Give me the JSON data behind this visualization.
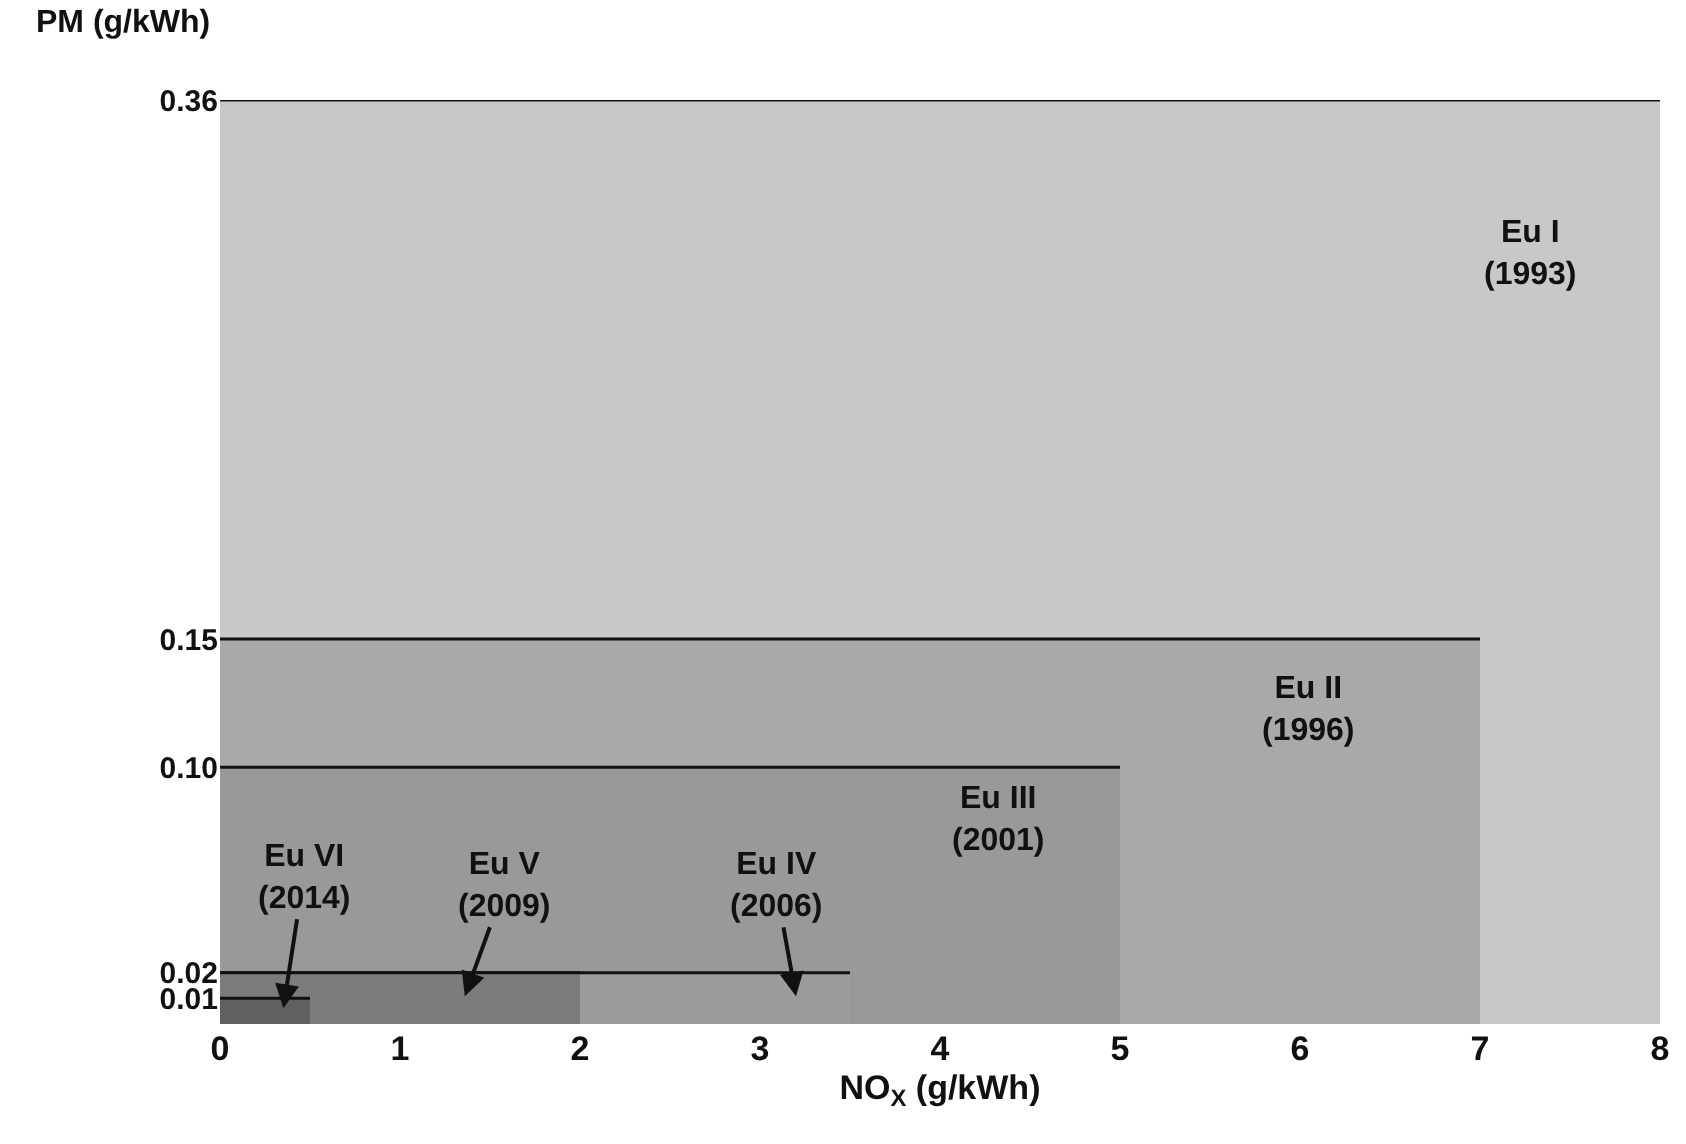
{
  "chart_data": {
    "type": "area",
    "xlabel": "NO$_{X}$ (g/kWh)",
    "ylabel": "PM (g/kWh)",
    "series": [
      {
        "color": "#c8c8c8",
        "x": [
          0,
          8
        ],
        "values": [
          0.36,
          0.36
        ]
      },
      {
        "color": "#a9a9a9",
        "x": [
          0,
          7
        ],
        "values": [
          0.15,
          0.15
        ]
      },
      {
        "color": "#999999",
        "x": [
          0,
          5
        ],
        "values": [
          0.1,
          0.1
        ]
      },
      {
        "color": "#9c9c9c",
        "x": [
          0,
          3.5
        ],
        "values": [
          0.02,
          0.02
        ]
      },
      {
        "color": "#7c7c7c",
        "x": [
          0,
          2
        ],
        "values": [
          0.02,
          0.02
        ]
      },
      {
        "color": "#606060",
        "x": [
          0,
          0.5
        ],
        "values": [
          0.01,
          0.01
        ]
      }
    ],
    "annotations": [
      "Eu I\n(1993)",
      "Eu II\n(1996)",
      "Eu III\n(2001)",
      "Eu IV\n(2006)",
      "Eu V\n(2009)",
      "Eu VI\n(2014)"
    ],
    "xlim": [
      0,
      8
    ],
    "xticks": [
      0,
      1,
      2,
      3,
      4,
      5,
      6,
      7,
      8
    ],
    "ylim": [
      0,
      0.36
    ],
    "yticks": [
      0.01,
      0.02,
      {
        "value": 0.1,
        "label": "0.10"
      },
      0.15,
      0.36
    ]
  }
}
